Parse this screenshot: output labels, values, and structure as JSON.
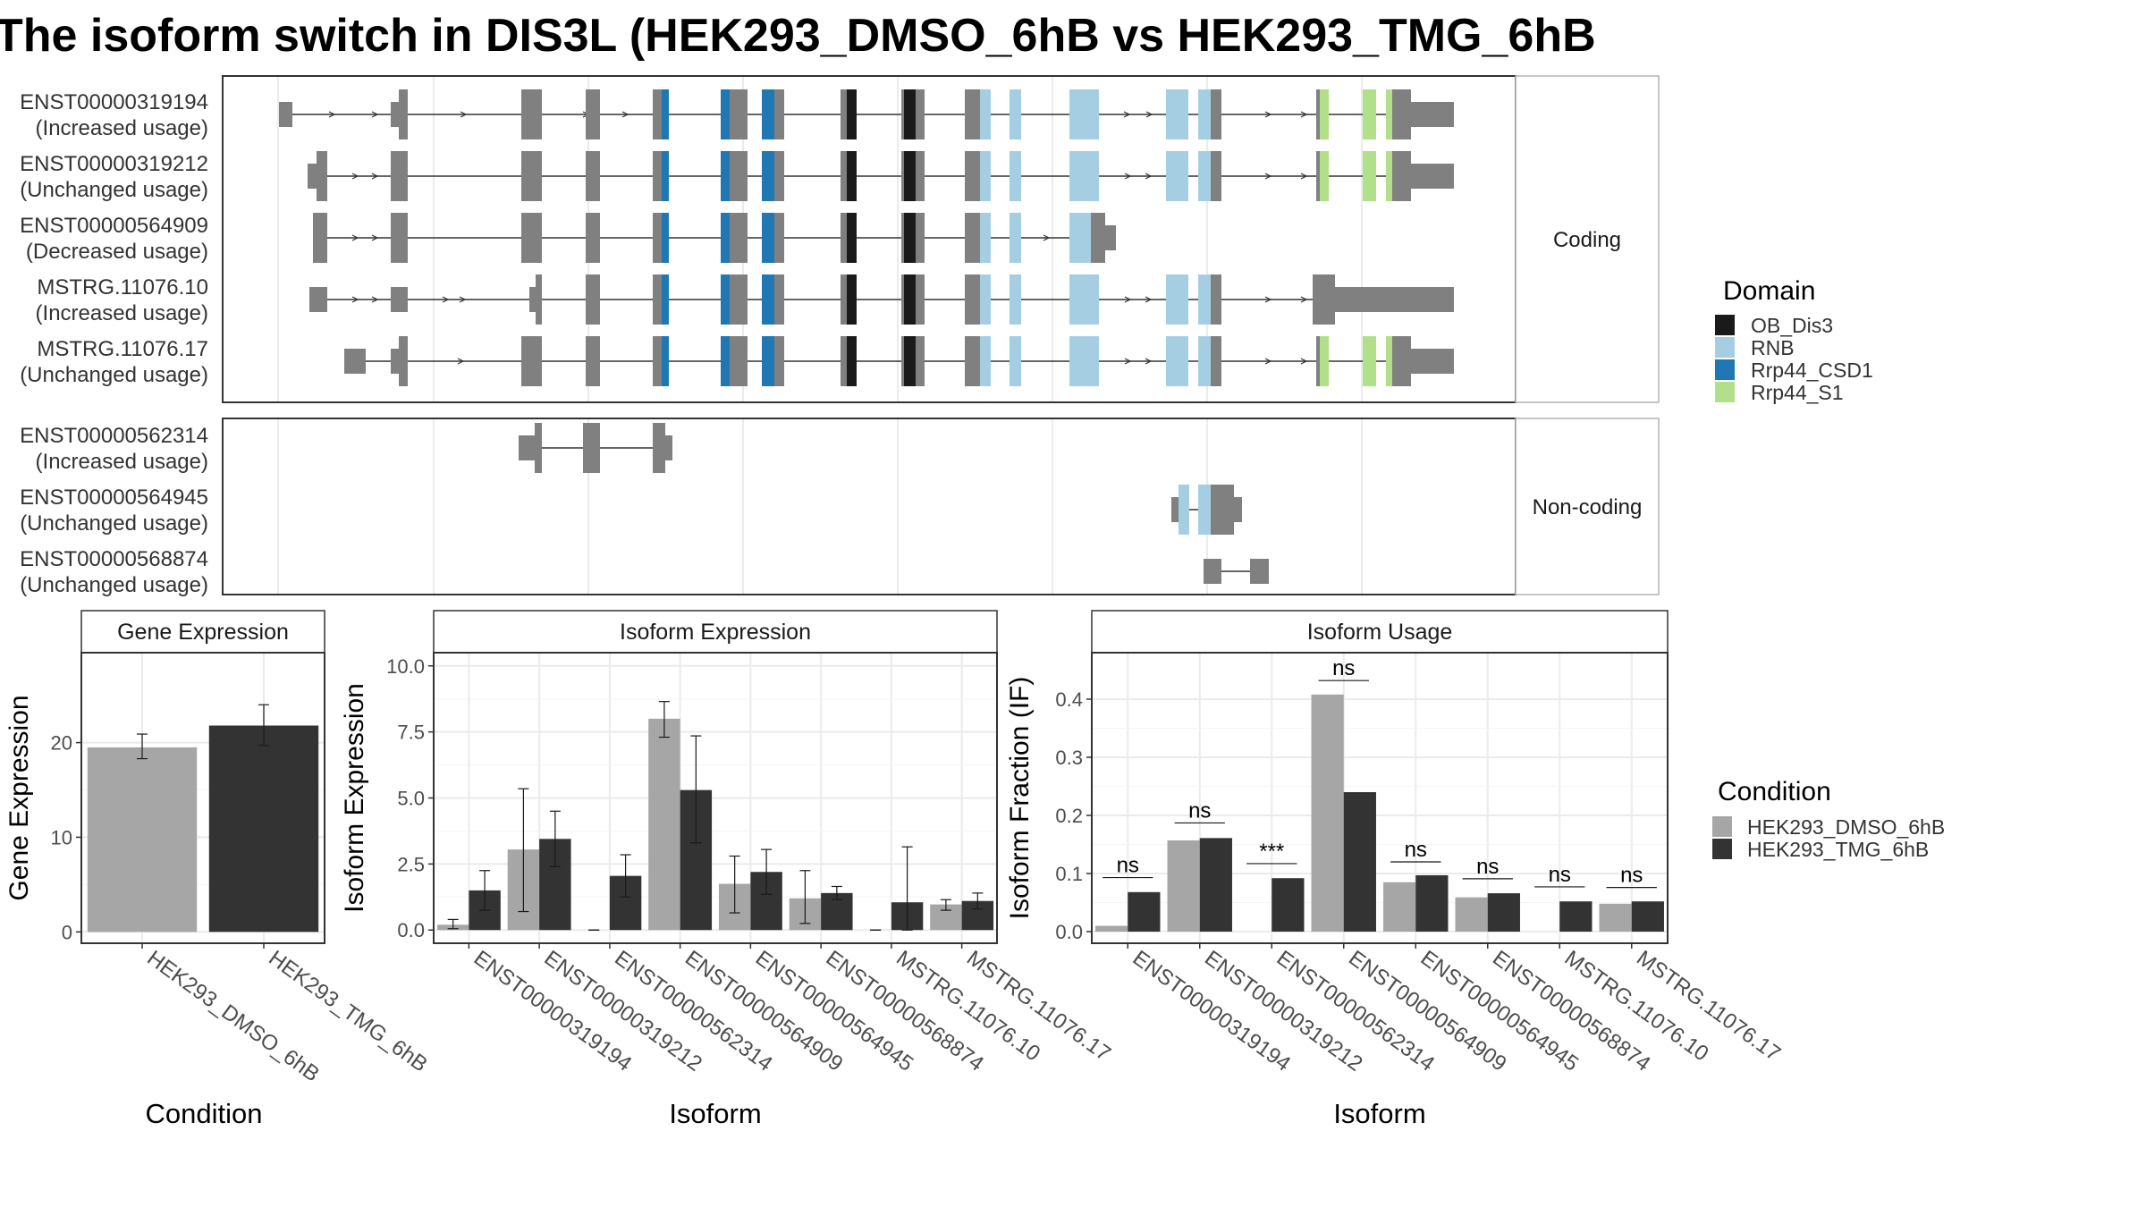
{
  "title": "The isoform switch in DIS3L (HEK293_DMSO_6hB vs HEK293_TMG_6hB",
  "colors": {
    "exon": "#808080",
    "OB_Dis3": "#1a1a1a",
    "RNB": "#a6cee3",
    "Rrp44_CSD1": "#1f78b4",
    "Rrp44_S1": "#b2df8a",
    "cond1": "#a6a6a6",
    "cond2": "#333333"
  },
  "transcript_panel": {
    "coding_strip": "Coding",
    "noncoding_strip": "Non-coding",
    "coding": [
      {
        "id": "ENST00000319194",
        "status": "(Increased usage)"
      },
      {
        "id": "ENST00000319212",
        "status": "(Unchanged usage)"
      },
      {
        "id": "ENST00000564909",
        "status": "(Decreased usage)"
      },
      {
        "id": "MSTRG.11076.10",
        "status": "(Increased usage)"
      },
      {
        "id": "MSTRG.11076.17",
        "status": "(Unchanged usage)"
      }
    ],
    "noncoding": [
      {
        "id": "ENST00000562314",
        "status": "(Increased usage)"
      },
      {
        "id": "ENST00000564945",
        "status": "(Unchanged usage)"
      },
      {
        "id": "ENST00000568874",
        "status": "(Unchanged usage)"
      }
    ]
  },
  "domain_legend": {
    "title": "Domain",
    "items": [
      {
        "name": "OB_Dis3",
        "color": "#1a1a1a"
      },
      {
        "name": "RNB",
        "color": "#a6cee3"
      },
      {
        "name": "Rrp44_CSD1",
        "color": "#1f78b4"
      },
      {
        "name": "Rrp44_S1",
        "color": "#b2df8a"
      }
    ]
  },
  "condition_legend": {
    "title": "Condition",
    "items": [
      {
        "name": "HEK293_DMSO_6hB",
        "color": "#a6a6a6"
      },
      {
        "name": "HEK293_TMG_6hB",
        "color": "#333333"
      }
    ]
  },
  "chart_data": [
    {
      "type": "bar",
      "title": "Gene Expression",
      "xlabel": "Condition",
      "ylabel": "Gene Expression",
      "categories": [
        "HEK293_DMSO_6hB",
        "HEK293_TMG_6hB"
      ],
      "values": [
        19.5,
        21.8
      ],
      "error_low": [
        18.3,
        19.7
      ],
      "error_high": [
        20.9,
        24.0
      ],
      "ylim": [
        -1.2,
        29.5
      ],
      "yticks": [
        0,
        10,
        20
      ],
      "grid": true
    },
    {
      "type": "bar",
      "title": "Isoform Expression",
      "xlabel": "Isoform",
      "ylabel": "Isoform Expression",
      "categories": [
        "ENST00000319194",
        "ENST00000319212",
        "ENST00000562314",
        "ENST00000564909",
        "ENST00000564945",
        "ENST00000568874",
        "MSTRG.11076.10",
        "MSTRG.11076.17"
      ],
      "series": [
        {
          "name": "HEK293_DMSO_6hB",
          "values": [
            0.2,
            3.05,
            0.0,
            8.0,
            1.75,
            1.2,
            0.0,
            0.97
          ],
          "error_low": [
            0.05,
            0.7,
            0.0,
            7.3,
            0.65,
            0.25,
            0.0,
            0.75
          ],
          "error_high": [
            0.4,
            5.35,
            0.0,
            8.65,
            2.8,
            2.25,
            0.0,
            1.15
          ]
        },
        {
          "name": "HEK293_TMG_6hB",
          "values": [
            1.5,
            3.45,
            2.05,
            5.3,
            2.2,
            1.4,
            1.05,
            1.1
          ],
          "error_low": [
            0.75,
            2.4,
            1.25,
            3.3,
            1.35,
            1.15,
            0.0,
            0.8
          ],
          "error_high": [
            2.25,
            4.5,
            2.85,
            7.35,
            3.05,
            1.65,
            3.15,
            1.4
          ]
        }
      ],
      "ylim": [
        -0.5,
        10.5
      ],
      "yticks": [
        "0.0",
        "2.5",
        "5.0",
        "7.5",
        "10.0"
      ],
      "grid": true
    },
    {
      "type": "bar",
      "title": "Isoform Usage",
      "xlabel": "Isoform",
      "ylabel": "Isoform Fraction (IF)",
      "categories": [
        "ENST00000319194",
        "ENST00000319212",
        "ENST00000562314",
        "ENST00000564909",
        "ENST00000564945",
        "ENST00000568874",
        "MSTRG.11076.10",
        "MSTRG.11076.17"
      ],
      "series": [
        {
          "name": "HEK293_DMSO_6hB",
          "values": [
            0.01,
            0.157,
            0.0,
            0.408,
            0.085,
            0.059,
            0.0,
            0.048
          ]
        },
        {
          "name": "HEK293_TMG_6hB",
          "values": [
            0.068,
            0.161,
            0.092,
            0.24,
            0.097,
            0.066,
            0.052,
            0.052
          ]
        }
      ],
      "significance": [
        "ns",
        "ns",
        "***",
        "ns",
        "ns",
        "ns",
        "ns",
        "ns"
      ],
      "significance_y": [
        0.093,
        0.187,
        0.117,
        0.432,
        0.12,
        0.091,
        0.077,
        0.076
      ],
      "ylim": [
        -0.02,
        0.48
      ],
      "yticks": [
        "0.0",
        "0.1",
        "0.2",
        "0.3",
        "0.4"
      ],
      "grid": true
    }
  ]
}
